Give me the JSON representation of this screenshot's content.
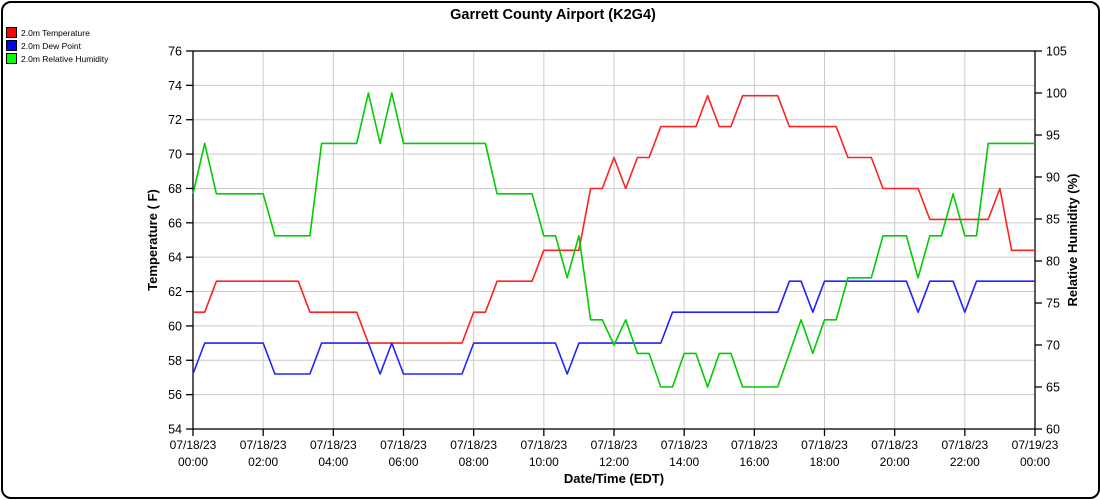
{
  "title": "Garrett County Airport (K2G4)",
  "legend": [
    {
      "label": "2.0m Temperature",
      "swatch_color": "#ff0000"
    },
    {
      "label": "2.0m Dew Point",
      "swatch_color": "#0000ff"
    },
    {
      "label": "2.0m Relative Humidity",
      "swatch_color": "#00ff00"
    }
  ],
  "axes": {
    "y_left": {
      "label": "Temperature ( F)",
      "min": 54,
      "max": 76,
      "ticks": [
        54,
        56,
        58,
        60,
        62,
        64,
        66,
        68,
        70,
        72,
        74,
        76
      ]
    },
    "y_right": {
      "label": "Relative Humidity (%)",
      "min": 60,
      "max": 105,
      "ticks": [
        60,
        65,
        70,
        75,
        80,
        85,
        90,
        95,
        100,
        105
      ]
    },
    "x": {
      "label": "Date/Time (EDT)",
      "tick_labels": [
        {
          "date": "07/18/23",
          "time": "00:00"
        },
        {
          "date": "07/18/23",
          "time": "02:00"
        },
        {
          "date": "07/18/23",
          "time": "04:00"
        },
        {
          "date": "07/18/23",
          "time": "06:00"
        },
        {
          "date": "07/18/23",
          "time": "08:00"
        },
        {
          "date": "07/18/23",
          "time": "10:00"
        },
        {
          "date": "07/18/23",
          "time": "12:00"
        },
        {
          "date": "07/18/23",
          "time": "14:00"
        },
        {
          "date": "07/18/23",
          "time": "16:00"
        },
        {
          "date": "07/18/23",
          "time": "18:00"
        },
        {
          "date": "07/18/23",
          "time": "20:00"
        },
        {
          "date": "07/18/23",
          "time": "22:00"
        },
        {
          "date": "07/19/23",
          "time": "00:00"
        }
      ]
    }
  },
  "colors": {
    "grid": "#cccccc",
    "axis": "#000000",
    "temperature_line": "#ff2222",
    "dew_point_line": "#2222ff",
    "humidity_line": "#00cc00"
  },
  "chart_data": {
    "type": "line",
    "title": "Garrett County Airport (K2G4)",
    "xlabel": "Date/Time (EDT)",
    "x_start_hour": 0,
    "x_end_hour": 24,
    "interval_minutes": 20,
    "x_tick_hours": [
      0,
      2,
      4,
      6,
      8,
      10,
      12,
      14,
      16,
      18,
      20,
      22,
      24
    ],
    "grid": true,
    "legend_position": "top-left",
    "y_left_range": [
      54,
      76
    ],
    "y_right_range": [
      60,
      105
    ],
    "series": [
      {
        "name": "2.0m Temperature",
        "axis": "left",
        "unit": "F",
        "values": [
          60.8,
          60.8,
          62.6,
          62.6,
          62.6,
          62.6,
          62.6,
          62.6,
          62.6,
          62.6,
          60.8,
          60.8,
          60.8,
          60.8,
          60.8,
          59,
          59,
          59,
          59,
          59,
          59,
          59,
          59,
          59,
          60.8,
          60.8,
          62.6,
          62.6,
          62.6,
          62.6,
          64.4,
          64.4,
          64.4,
          64.4,
          68,
          68,
          69.8,
          68,
          69.8,
          69.8,
          71.6,
          71.6,
          71.6,
          71.6,
          73.4,
          71.6,
          71.6,
          73.4,
          73.4,
          73.4,
          73.4,
          71.6,
          71.6,
          71.6,
          71.6,
          71.6,
          69.8,
          69.8,
          69.8,
          68,
          68,
          68,
          68,
          66.2,
          66.2,
          66.2,
          66.2,
          66.2,
          66.2,
          68,
          64.4,
          64.4,
          64.4
        ]
      },
      {
        "name": "2.0m Dew Point",
        "axis": "left",
        "unit": "F",
        "values": [
          57.2,
          59,
          59,
          59,
          59,
          59,
          59,
          57.2,
          57.2,
          57.2,
          57.2,
          59,
          59,
          59,
          59,
          59,
          57.2,
          59,
          57.2,
          57.2,
          57.2,
          57.2,
          57.2,
          57.2,
          59,
          59,
          59,
          59,
          59,
          59,
          59,
          59,
          57.2,
          59,
          59,
          59,
          59,
          59,
          59,
          59,
          59,
          60.8,
          60.8,
          60.8,
          60.8,
          60.8,
          60.8,
          60.8,
          60.8,
          60.8,
          60.8,
          62.6,
          62.6,
          60.8,
          62.6,
          62.6,
          62.6,
          62.6,
          62.6,
          62.6,
          62.6,
          62.6,
          60.8,
          62.6,
          62.6,
          62.6,
          60.8,
          62.6,
          62.6,
          62.6,
          62.6,
          62.6,
          62.6
        ]
      },
      {
        "name": "2.0m Relative Humidity",
        "axis": "right",
        "unit": "%",
        "values": [
          88,
          94,
          88,
          88,
          88,
          88,
          88,
          83,
          83,
          83,
          83,
          94,
          94,
          94,
          94,
          100,
          94,
          100,
          94,
          94,
          94,
          94,
          94,
          94,
          94,
          94,
          88,
          88,
          88,
          88,
          83,
          83,
          78,
          83,
          73,
          73,
          70,
          73,
          69,
          69,
          65,
          65,
          69,
          69,
          65,
          69,
          69,
          65,
          65,
          65,
          65,
          69,
          73,
          69,
          73,
          73,
          78,
          78,
          78,
          83,
          83,
          83,
          78,
          83,
          83,
          88,
          83,
          83,
          94,
          94,
          94,
          94,
          94
        ]
      }
    ]
  }
}
